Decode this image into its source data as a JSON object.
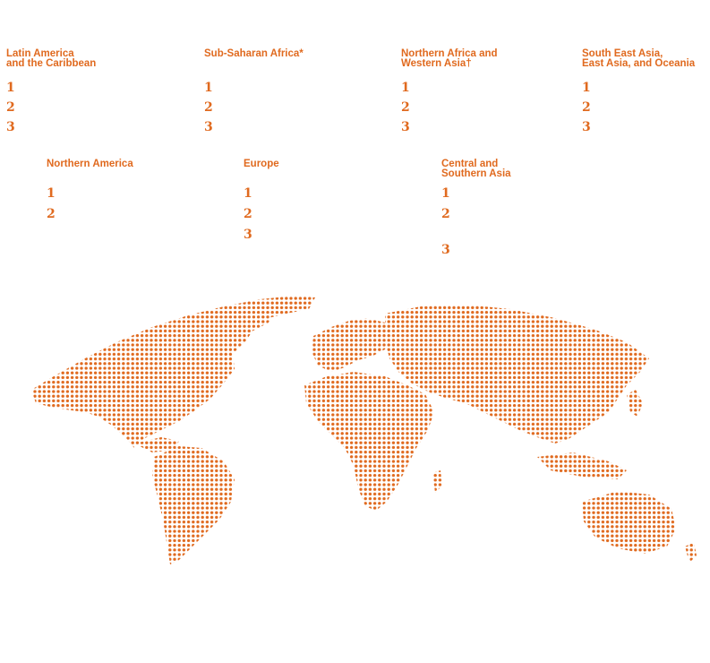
{
  "accent_color": "#e06a1f",
  "regions": [
    {
      "id": "latin-america",
      "title": "Latin America\nand the Caribbean",
      "ranks": [
        "1",
        "2",
        "3"
      ]
    },
    {
      "id": "sub-saharan-africa",
      "title": "Sub-Saharan Africa*",
      "ranks": [
        "1",
        "2",
        "3"
      ]
    },
    {
      "id": "northern-africa-western-asia",
      "title": "Northern Africa and\nWestern Asia†",
      "ranks": [
        "1",
        "2",
        "3"
      ]
    },
    {
      "id": "se-asia-east-asia-oceania",
      "title": "South East Asia,\nEast Asia, and Oceania",
      "ranks": [
        "1",
        "2",
        "3"
      ]
    },
    {
      "id": "northern-america",
      "title": "Northern America",
      "ranks": [
        "1",
        "2"
      ]
    },
    {
      "id": "europe",
      "title": "Europe",
      "ranks": [
        "1",
        "2",
        "3"
      ]
    },
    {
      "id": "central-southern-asia",
      "title": "Central and\nSouthern Asia",
      "ranks": [
        "1",
        "2",
        "3"
      ]
    }
  ],
  "map": {
    "icon": "dotted-world-map"
  }
}
